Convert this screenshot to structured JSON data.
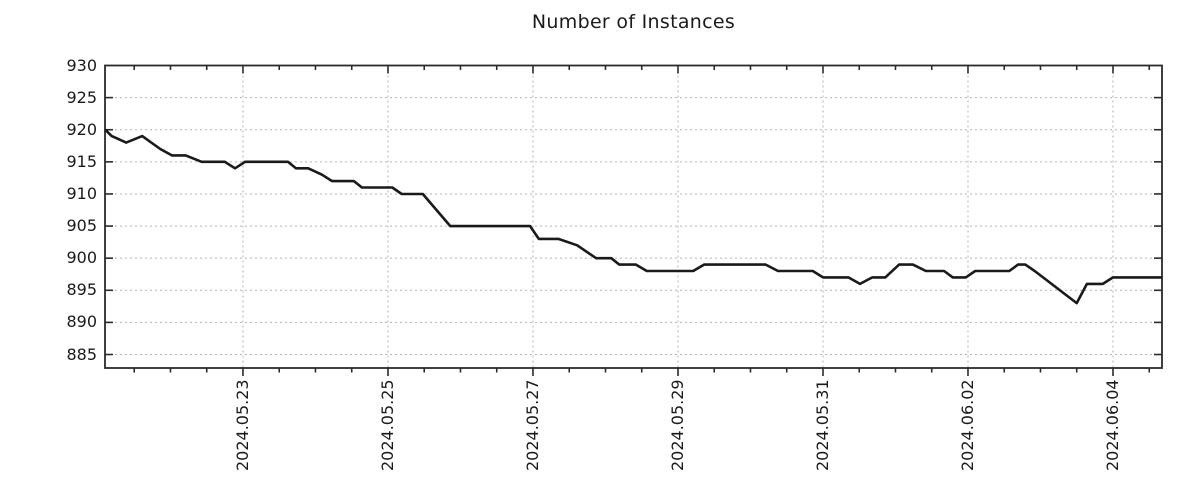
{
  "figure": {
    "title": "Number of Instances"
  },
  "colors": {
    "line": "#1a1a1a",
    "grid": "#b3b3b3",
    "frame": "#2b2b2b",
    "text": "#1a1a1a",
    "background": "#ffffff"
  },
  "chart_data": {
    "type": "line",
    "title": "Number of Instances",
    "xlabel": "",
    "ylabel": "",
    "legend_position": "none",
    "grid": "dashed",
    "x_unit": "days since 2024.05.21",
    "x_tick_labels": [
      "2024.05.23",
      "2024.05.25",
      "2024.05.27",
      "2024.05.29",
      "2024.05.31",
      "2024.06.02",
      "2024.06.04"
    ],
    "x_tick_days": [
      2,
      4,
      6,
      8,
      10,
      12,
      14
    ],
    "x_minor_tick_step_days": 0.5,
    "xlim_days": [
      0.097,
      14.676
    ],
    "y_ticks": [
      930,
      925,
      920,
      915,
      910,
      905,
      900,
      895,
      890,
      885
    ],
    "ylim": [
      882.9,
      930
    ],
    "series": [
      {
        "name": "Number of Instances",
        "color": "#1a1a1a",
        "points_day_value": [
          [
            0.1,
            920
          ],
          [
            0.19,
            919
          ],
          [
            0.39,
            918
          ],
          [
            0.61,
            919
          ],
          [
            0.86,
            917
          ],
          [
            1.02,
            916
          ],
          [
            1.21,
            916
          ],
          [
            1.43,
            915
          ],
          [
            1.75,
            915
          ],
          [
            1.89,
            914
          ],
          [
            2.03,
            915
          ],
          [
            2.62,
            915
          ],
          [
            2.73,
            914
          ],
          [
            2.9,
            914
          ],
          [
            3.09,
            913
          ],
          [
            3.23,
            912
          ],
          [
            3.53,
            912
          ],
          [
            3.64,
            911
          ],
          [
            4.06,
            911
          ],
          [
            4.19,
            910
          ],
          [
            4.48,
            910
          ],
          [
            4.86,
            905
          ],
          [
            5.96,
            905
          ],
          [
            6.08,
            903
          ],
          [
            6.35,
            903
          ],
          [
            6.61,
            902
          ],
          [
            6.87,
            900
          ],
          [
            7.08,
            900
          ],
          [
            7.19,
            899
          ],
          [
            7.42,
            899
          ],
          [
            7.57,
            898
          ],
          [
            8.21,
            898
          ],
          [
            8.36,
            899
          ],
          [
            9.21,
            899
          ],
          [
            9.38,
            898
          ],
          [
            9.86,
            898
          ],
          [
            10.0,
            897
          ],
          [
            10.35,
            897
          ],
          [
            10.51,
            896
          ],
          [
            10.68,
            897
          ],
          [
            10.86,
            897
          ],
          [
            11.05,
            899
          ],
          [
            11.24,
            899
          ],
          [
            11.42,
            898
          ],
          [
            11.67,
            898
          ],
          [
            11.79,
            897
          ],
          [
            11.97,
            897
          ],
          [
            12.1,
            898
          ],
          [
            12.57,
            898
          ],
          [
            12.69,
            899
          ],
          [
            12.79,
            899
          ],
          [
            12.92,
            898
          ],
          [
            13.5,
            893
          ],
          [
            13.64,
            896
          ],
          [
            13.86,
            896
          ],
          [
            14.0,
            897
          ],
          [
            14.68,
            897
          ]
        ]
      }
    ]
  }
}
